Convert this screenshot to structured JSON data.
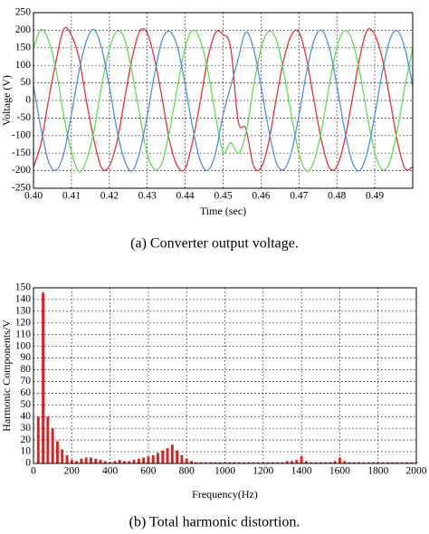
{
  "chart_data": [
    {
      "type": "line",
      "xlabel": "Time (sec)",
      "ylabel": "Voltage (V)",
      "caption": "(a)  Converter output voltage.",
      "x": [
        0.4,
        0.402,
        0.404,
        0.406,
        0.408,
        0.41,
        0.412,
        0.414,
        0.416,
        0.418,
        0.42,
        0.422,
        0.424,
        0.426,
        0.428,
        0.43,
        0.432,
        0.434,
        0.436,
        0.438,
        0.44,
        0.442,
        0.444,
        0.446,
        0.448,
        0.45,
        0.452,
        0.454,
        0.456,
        0.458,
        0.46,
        0.462,
        0.464,
        0.466,
        0.468,
        0.47,
        0.472,
        0.474,
        0.476,
        0.478,
        0.48,
        0.482,
        0.484,
        0.486,
        0.488,
        0.49,
        0.492,
        0.494,
        0.496,
        0.498,
        0.5
      ],
      "series": [
        {
          "color": "#e8303a",
          "values": [
            -190,
            -121,
            3,
            115,
            204,
            186,
            121,
            -4,
            -115,
            -193,
            -186,
            -118,
            2,
            120,
            197,
            192,
            114,
            1,
            -121,
            -188,
            -194,
            -115,
            -2,
            121,
            193,
            188,
            150,
            -60,
            -80,
            -185,
            -192,
            -120,
            4,
            116,
            186,
            195,
            119,
            -2,
            -117,
            -191,
            -188,
            -116,
            0,
            121,
            200,
            187,
            118,
            3,
            -119,
            -194,
            -189
          ]
        },
        {
          "color": "#5ee04a",
          "values": [
            149,
            202,
            170,
            84,
            -44,
            -146,
            -203,
            -170,
            -83,
            44,
            146,
            197,
            176,
            79,
            -40,
            -152,
            -196,
            -175,
            -79,
            41,
            151,
            200,
            171,
            83,
            -43,
            -147,
            -120,
            -150,
            -95,
            38,
            148,
            196,
            174,
            80,
            -41,
            -150,
            -201,
            -172,
            -82,
            43,
            150,
            199,
            172,
            82,
            -42,
            -148,
            -197,
            -174,
            -80,
            42,
            149
          ]
        },
        {
          "color": "#4a90e8",
          "values": [
            42,
            -80,
            -175,
            -198,
            -151,
            -40,
            83,
            171,
            202,
            147,
            40,
            -83,
            -170,
            -201,
            -147,
            -44,
            79,
            175,
            196,
            151,
            44,
            -79,
            -172,
            -199,
            -150,
            -41,
            40,
            120,
            195,
            148,
            41,
            -82,
            -176,
            -197,
            -148,
            -43,
            80,
            172,
            200,
            150,
            43,
            -81,
            -173,
            -200,
            -149,
            -42,
            82,
            174,
            198,
            146,
            42
          ]
        }
      ],
      "xlim": [
        0.4,
        0.5
      ],
      "xticks": [
        {
          "value": 0.4,
          "label": "0.40"
        },
        0.41,
        0.42,
        0.43,
        0.44,
        0.45,
        0.46,
        0.47,
        0.48,
        0.49
      ],
      "ylim": [
        -250,
        250
      ],
      "yticks": [
        -250,
        -200,
        -150,
        -100,
        -50,
        0,
        50,
        100,
        150,
        200,
        250
      ],
      "grid": true
    },
    {
      "type": "bar",
      "xlabel": "Frequency(Hz)",
      "ylabel": "Harmonic Components/V",
      "caption": "(b)  Total harmonic distortion.",
      "color": "#e02020",
      "x": [
        25,
        50,
        75,
        100,
        125,
        150,
        175,
        200,
        225,
        250,
        275,
        300,
        325,
        350,
        375,
        400,
        425,
        450,
        475,
        500,
        525,
        550,
        575,
        600,
        625,
        650,
        675,
        700,
        725,
        750,
        775,
        800,
        825,
        850,
        875,
        900,
        925,
        950,
        975,
        1000,
        1025,
        1050,
        1075,
        1100,
        1125,
        1150,
        1175,
        1200,
        1225,
        1250,
        1275,
        1300,
        1325,
        1350,
        1375,
        1400,
        1425,
        1450,
        1475,
        1500,
        1525,
        1550,
        1575,
        1600,
        1625,
        1650,
        1675,
        1700,
        1725,
        1750,
        1775,
        1800,
        1825,
        1850,
        1875,
        1900,
        1925,
        1950,
        1975,
        2000
      ],
      "values": [
        40,
        146,
        40,
        30,
        19,
        12,
        7,
        3,
        2,
        4,
        5,
        5,
        4,
        3,
        2,
        1,
        2,
        3,
        2,
        2,
        3,
        4,
        5,
        6,
        7,
        9,
        11,
        13,
        16,
        11,
        7,
        4,
        2,
        1,
        1,
        1,
        1,
        1,
        1,
        1,
        1,
        1,
        1,
        1,
        1,
        1,
        1,
        1,
        1,
        1,
        1,
        1,
        2,
        2,
        3,
        6,
        2,
        1,
        1,
        1,
        1,
        1,
        2,
        5,
        2,
        1,
        1,
        1,
        1,
        1,
        1,
        1,
        1,
        1,
        1,
        1,
        1,
        1,
        1,
        1
      ],
      "xlim": [
        0,
        2000
      ],
      "xticks": [
        0,
        200,
        400,
        600,
        800,
        1000,
        1200,
        1400,
        1600,
        1800,
        2000
      ],
      "ylim": [
        0,
        150
      ],
      "yticks": [
        0,
        10,
        20,
        30,
        40,
        50,
        60,
        70,
        80,
        90,
        100,
        110,
        120,
        130,
        140,
        150
      ],
      "grid": true
    }
  ]
}
